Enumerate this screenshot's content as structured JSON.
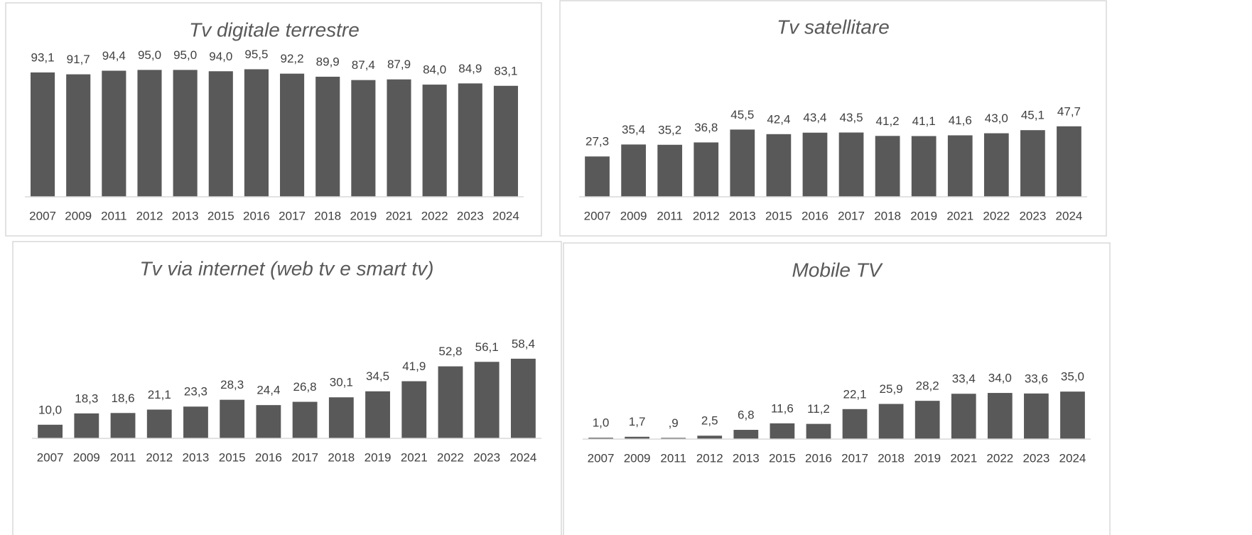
{
  "chart_data": [
    {
      "type": "bar",
      "title": "Tv digitale terrestre",
      "color": "#595959",
      "ylim": [
        0,
        100
      ],
      "categories": [
        "2007",
        "2009",
        "2011",
        "2012",
        "2013",
        "2015",
        "2016",
        "2017",
        "2018",
        "2019",
        "2021",
        "2022",
        "2023",
        "2024"
      ],
      "values": [
        93.1,
        91.7,
        94.4,
        95.0,
        95.0,
        94.0,
        95.5,
        92.2,
        89.9,
        87.4,
        87.9,
        84.0,
        84.9,
        83.1
      ],
      "value_labels": [
        "93,1",
        "91,7",
        "94,4",
        "95,0",
        "95,0",
        "94,0",
        "95,5",
        "92,2",
        "89,9",
        "87,4",
        "87,9",
        "84,0",
        "84,9",
        "83,1"
      ]
    },
    {
      "type": "bar",
      "title": "Tv satellitare",
      "color": "#595959",
      "ylim": [
        0,
        100
      ],
      "categories": [
        "2007",
        "2009",
        "2011",
        "2012",
        "2013",
        "2015",
        "2016",
        "2017",
        "2018",
        "2019",
        "2021",
        "2022",
        "2023",
        "2024"
      ],
      "values": [
        27.3,
        35.4,
        35.2,
        36.8,
        45.5,
        42.4,
        43.4,
        43.5,
        41.2,
        41.1,
        41.6,
        43.0,
        45.1,
        47.7
      ],
      "value_labels": [
        "27,3",
        "35,4",
        "35,2",
        "36,8",
        "45,5",
        "42,4",
        "43,4",
        "43,5",
        "41,2",
        "41,1",
        "41,6",
        "43,0",
        "45,1",
        "47,7"
      ]
    },
    {
      "type": "bar",
      "title": "Tv via internet (web tv e smart tv)",
      "color": "#595959",
      "ylim": [
        0,
        100
      ],
      "categories": [
        "2007",
        "2009",
        "2011",
        "2012",
        "2013",
        "2015",
        "2016",
        "2017",
        "2018",
        "2019",
        "2021",
        "2022",
        "2023",
        "2024"
      ],
      "values": [
        10.0,
        18.3,
        18.6,
        21.1,
        23.3,
        28.3,
        24.4,
        26.8,
        30.1,
        34.5,
        41.9,
        52.8,
        56.1,
        58.4
      ],
      "value_labels": [
        "10,0",
        "18,3",
        "18,6",
        "21,1",
        "23,3",
        "28,3",
        "24,4",
        "26,8",
        "30,1",
        "34,5",
        "41,9",
        "52,8",
        "56,1",
        "58,4"
      ]
    },
    {
      "type": "bar",
      "title": "Mobile TV",
      "color": "#595959",
      "ylim": [
        0,
        100
      ],
      "categories": [
        "2007",
        "2009",
        "2011",
        "2012",
        "2013",
        "2015",
        "2016",
        "2017",
        "2018",
        "2019",
        "2021",
        "2022",
        "2023",
        "2024"
      ],
      "values": [
        1.0,
        1.7,
        0.9,
        2.5,
        6.8,
        11.6,
        11.2,
        22.1,
        25.9,
        28.2,
        33.4,
        34.0,
        33.6,
        35.0
      ],
      "value_labels": [
        "1,0",
        "1,7",
        ",9",
        "2,5",
        "6,8",
        "11,6",
        "11,2",
        "22,1",
        "25,9",
        "28,2",
        "33,4",
        "34,0",
        "33,6",
        "35,0"
      ]
    }
  ]
}
